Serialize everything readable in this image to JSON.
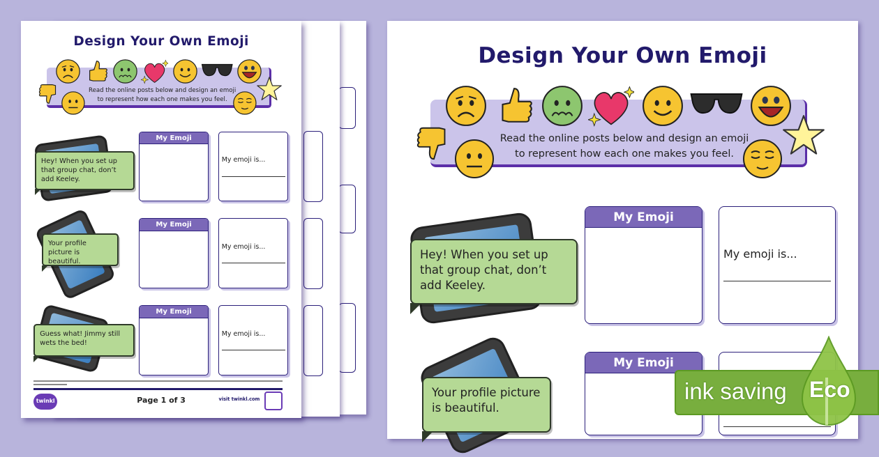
{
  "worksheet": {
    "title": "Design Your Own Emoji",
    "instructions": [
      "Read the online posts below and design an emoji",
      "to represent how each one makes you feel."
    ],
    "banner_emojis": [
      "sad-face",
      "thumbs-up",
      "sick-face",
      "sparkle-heart",
      "smiling-face",
      "sunglasses",
      "laughing-face",
      "thumbs-down",
      "neutral-face",
      "relieved-face",
      "star"
    ],
    "rows": [
      {
        "post": "Hey! When you set up that group chat, don’t add Keeley.",
        "emoji_box_label": "My Emoji",
        "answer_label": "My emoji is..."
      },
      {
        "post": "Your profile picture is beautiful.",
        "emoji_box_label": "My Emoji",
        "answer_label": "My emoji is..."
      },
      {
        "post": "Guess what! Jimmy still wets the bed!",
        "emoji_box_label": "My Emoji",
        "answer_label": "My emoji is..."
      }
    ],
    "footer": {
      "logo": "twinkl",
      "page": "Page 1 of 3",
      "link": "visit twinkl.com"
    }
  },
  "eco_badge": {
    "label": "ink saving",
    "tag": "Eco"
  },
  "colors": {
    "background": "#b8b4dc",
    "title": "#221a6b",
    "banner": "#cbc4ea",
    "box_header": "#7b68b8",
    "bubble": "#b5d995",
    "eco": "#78ae3e"
  }
}
